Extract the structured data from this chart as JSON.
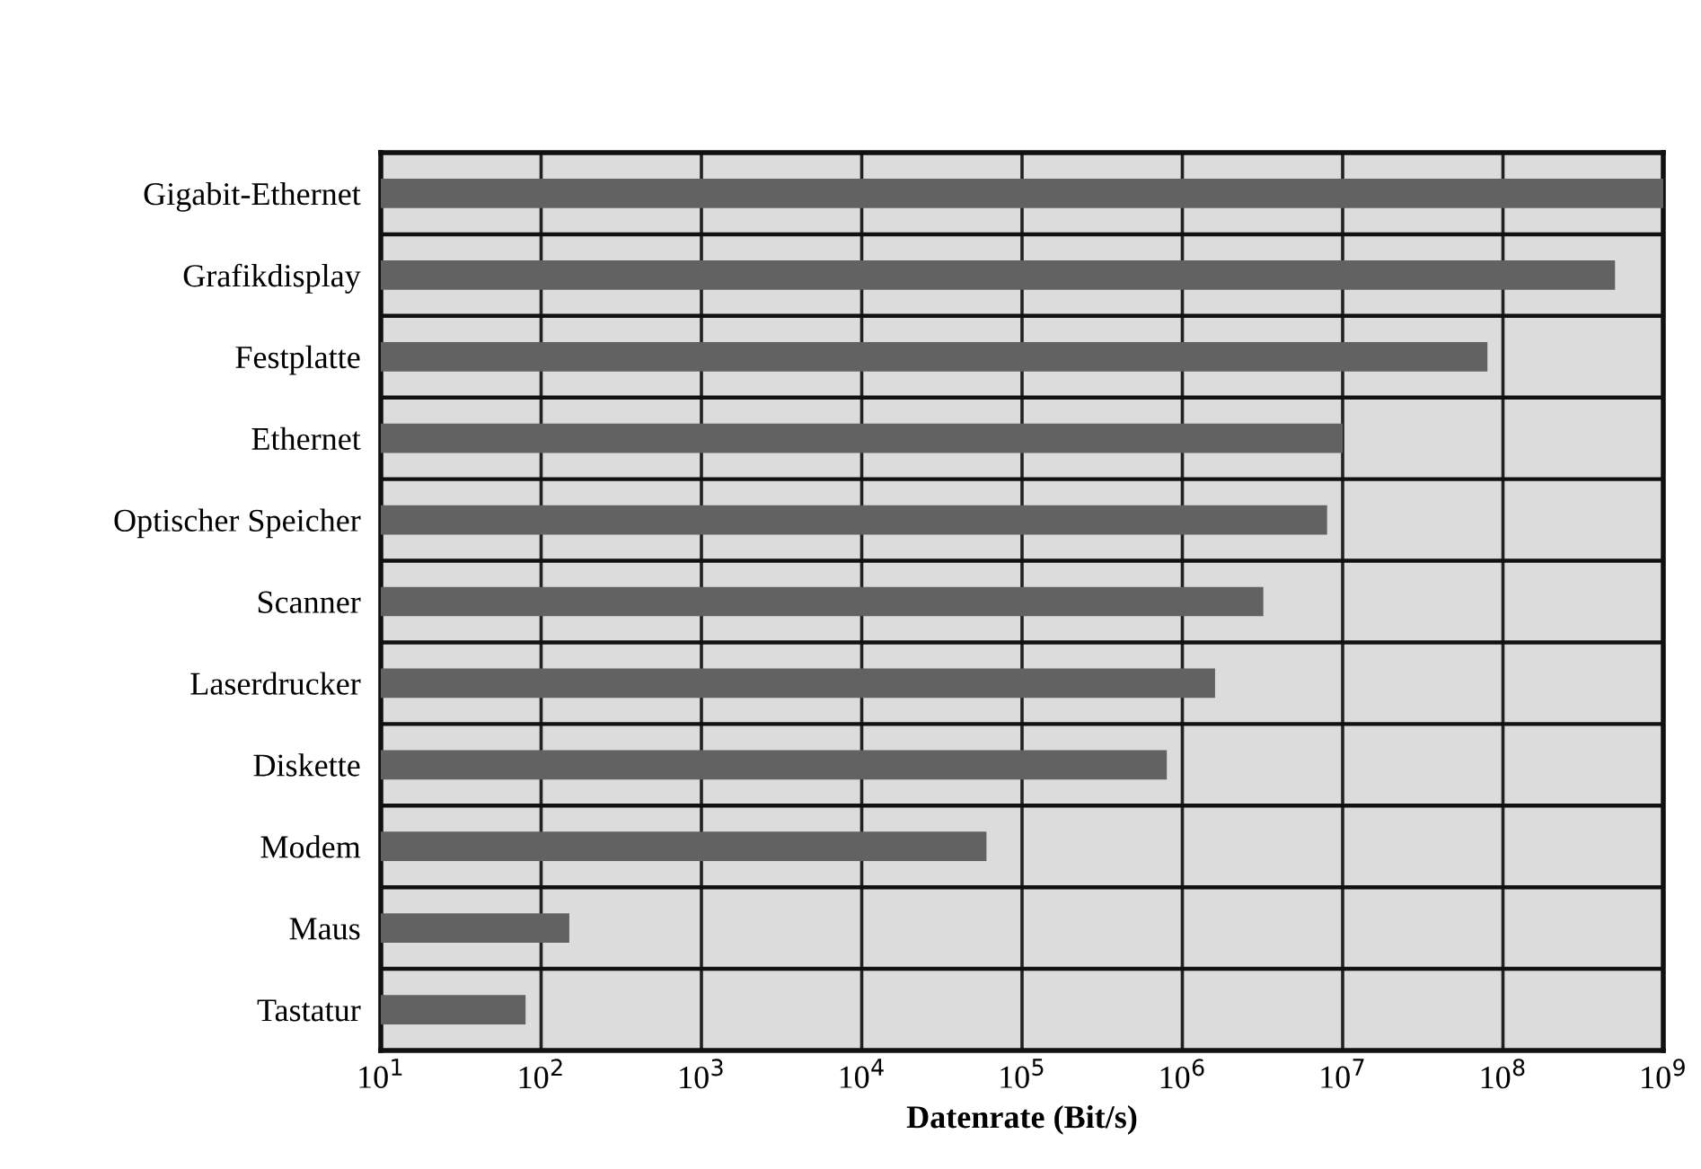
{
  "chart_data": {
    "type": "bar",
    "orientation": "horizontal",
    "log": "x",
    "xlabel": "Datenrate (Bit/s)",
    "categories": [
      "Gigabit-Ethernet",
      "Grafikdisplay",
      "Festplatte",
      "Ethernet",
      "Optischer Speicher",
      "Scanner",
      "Laserdrucker",
      "Diskette",
      "Modem",
      "Maus",
      "Tastatur"
    ],
    "values": [
      1000000000,
      500000000,
      80000000,
      10000000,
      8000000,
      3200000,
      1600000,
      800000,
      60000,
      150,
      80
    ],
    "color": "#626262",
    "xlim": [
      10,
      1000000000
    ],
    "xticks": [
      {
        "value": 10,
        "label": "10$^{1}$"
      },
      {
        "value": 100,
        "label": "10$^{2}$"
      },
      {
        "value": 1000,
        "label": "10$^{3}$"
      },
      {
        "value": 10000,
        "label": "10$^{4}$"
      },
      {
        "value": 100000,
        "label": "10$^{5}$"
      },
      {
        "value": 1000000,
        "label": "10$^{6}$"
      },
      {
        "value": 10000000,
        "label": "10$^{7}$"
      },
      {
        "value": 100000000,
        "label": "10$^{8}$"
      },
      {
        "value": 1000000000,
        "label": "10$^{9}$"
      }
    ],
    "grid": true
  }
}
